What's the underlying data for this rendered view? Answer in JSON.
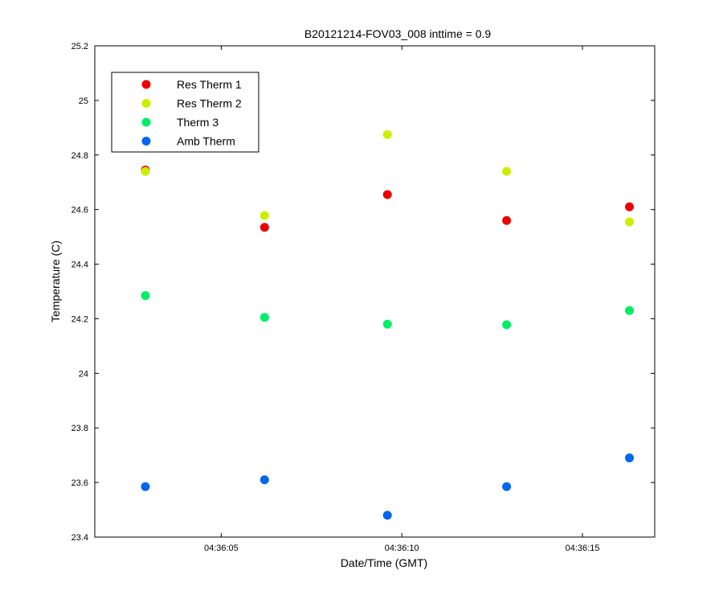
{
  "chart_data": {
    "type": "scatter",
    "title": "B20121214-FOV03_008 inttime = 0.9",
    "xlabel": "Date/Time (GMT)",
    "ylabel": "Temperature (C)",
    "xlim": [
      "04:36:01.5",
      "04:36:17.0"
    ],
    "ylim": [
      23.4,
      25.2
    ],
    "x_ticks": [
      "04:36:05",
      "04:36:10",
      "04:36:15"
    ],
    "y_ticks": [
      23.4,
      23.6,
      23.8,
      24,
      24.2,
      24.4,
      24.6,
      24.8,
      25,
      25.2
    ],
    "grid": false,
    "legend_position": "top-left",
    "x": [
      "04:36:02.9",
      "04:36:06.2",
      "04:36:09.6",
      "04:36:12.9",
      "04:36:16.3"
    ],
    "series": [
      {
        "name": "Res Therm 1",
        "color": "#ee0000",
        "values": [
          24.745,
          24.535,
          24.655,
          24.56,
          24.61
        ]
      },
      {
        "name": "Res Therm 2",
        "color": "#ccee00",
        "values": [
          24.74,
          24.578,
          24.875,
          24.74,
          24.555
        ]
      },
      {
        "name": "Therm 3",
        "color": "#00ee66",
        "values": [
          24.285,
          24.205,
          24.18,
          24.178,
          24.23
        ]
      },
      {
        "name": "Amb Therm",
        "color": "#0066ee",
        "values": [
          23.585,
          23.61,
          23.48,
          23.585,
          23.69
        ]
      }
    ]
  }
}
